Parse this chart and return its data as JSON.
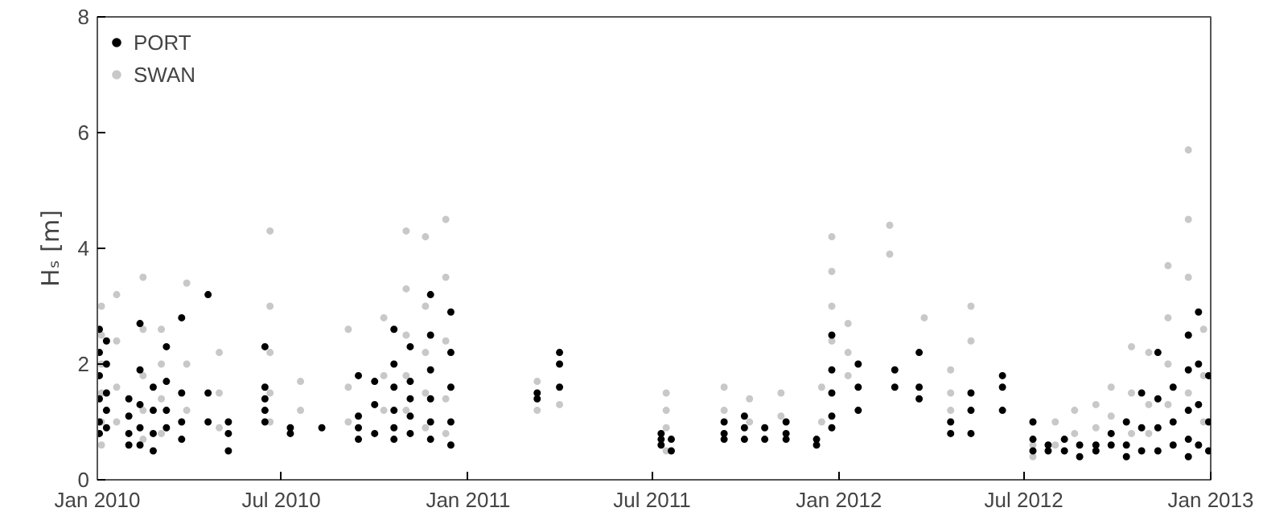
{
  "chart_data": {
    "type": "scatter",
    "ylabel": "Hₛ [m]",
    "marker": "circle",
    "grid": false,
    "legend": "top left",
    "xlim": [
      "2010-01",
      "2013-01"
    ],
    "ylim": [
      0,
      8
    ],
    "yticks": [
      0,
      2,
      4,
      6,
      8
    ],
    "xticks": [
      {
        "value": "2010-01",
        "label": "Jan 2010"
      },
      {
        "value": "2010-07",
        "label": "Jul 2010"
      },
      {
        "value": "2011-01",
        "label": "Jan 2011"
      },
      {
        "value": "2011-07",
        "label": "Jul 2011"
      },
      {
        "value": "2012-01",
        "label": "Jan 2012"
      },
      {
        "value": "2012-07",
        "label": "Jul 2012"
      },
      {
        "value": "2013-01",
        "label": "Jan 2013"
      }
    ],
    "series": [
      {
        "name": "PORT",
        "color": "#000000",
        "x": [
          "2010-01-03",
          "2010-01-03",
          "2010-01-03",
          "2010-01-03",
          "2010-01-03",
          "2010-01-03",
          "2010-01-10",
          "2010-01-10",
          "2010-01-10",
          "2010-01-10",
          "2010-01-10",
          "2010-02-01",
          "2010-02-01",
          "2010-02-01",
          "2010-02-01",
          "2010-02-12",
          "2010-02-12",
          "2010-02-12",
          "2010-02-12",
          "2010-02-12",
          "2010-02-25",
          "2010-02-25",
          "2010-02-25",
          "2010-02-25",
          "2010-03-10",
          "2010-03-10",
          "2010-03-10",
          "2010-03-10",
          "2010-03-25",
          "2010-03-25",
          "2010-03-25",
          "2010-03-25",
          "2010-04-20",
          "2010-04-20",
          "2010-04-20",
          "2010-05-10",
          "2010-05-10",
          "2010-05-10",
          "2010-06-15",
          "2010-06-15",
          "2010-06-15",
          "2010-06-15",
          "2010-06-15",
          "2010-07-10",
          "2010-07-10",
          "2010-08-10",
          "2010-09-15",
          "2010-09-15",
          "2010-09-15",
          "2010-09-15",
          "2010-10-01",
          "2010-10-01",
          "2010-10-01",
          "2010-10-20",
          "2010-10-20",
          "2010-10-20",
          "2010-10-20",
          "2010-10-20",
          "2010-10-20",
          "2010-11-05",
          "2010-11-05",
          "2010-11-05",
          "2010-11-05",
          "2010-11-05",
          "2010-11-25",
          "2010-11-25",
          "2010-11-25",
          "2010-11-25",
          "2010-11-25",
          "2010-11-25",
          "2010-12-15",
          "2010-12-15",
          "2010-12-15",
          "2010-12-15",
          "2010-12-15",
          "2011-03-10",
          "2011-03-10",
          "2011-04-01",
          "2011-04-01",
          "2011-04-01",
          "2011-07-10",
          "2011-07-10",
          "2011-07-10",
          "2011-07-20",
          "2011-07-20",
          "2011-09-10",
          "2011-09-10",
          "2011-09-10",
          "2011-09-30",
          "2011-09-30",
          "2011-09-30",
          "2011-10-20",
          "2011-10-20",
          "2011-11-10",
          "2011-11-10",
          "2011-11-10",
          "2011-12-10",
          "2011-12-10",
          "2011-12-25",
          "2011-12-25",
          "2011-12-25",
          "2011-12-25",
          "2011-12-25",
          "2012-01-20",
          "2012-01-20",
          "2012-01-20",
          "2012-02-25",
          "2012-02-25",
          "2012-03-20",
          "2012-03-20",
          "2012-03-20",
          "2012-04-20",
          "2012-04-20",
          "2012-05-10",
          "2012-05-10",
          "2012-05-10",
          "2012-06-10",
          "2012-06-10",
          "2012-06-10",
          "2012-07-10",
          "2012-07-10",
          "2012-07-10",
          "2012-07-25",
          "2012-07-25",
          "2012-08-10",
          "2012-08-10",
          "2012-08-25",
          "2012-08-25",
          "2012-09-10",
          "2012-09-10",
          "2012-09-25",
          "2012-09-25",
          "2012-10-10",
          "2012-10-10",
          "2012-10-10",
          "2012-10-25",
          "2012-10-25",
          "2012-10-25",
          "2012-11-10",
          "2012-11-10",
          "2012-11-10",
          "2012-11-10",
          "2012-11-25",
          "2012-11-25",
          "2012-11-25",
          "2012-12-10",
          "2012-12-10",
          "2012-12-10",
          "2012-12-10",
          "2012-12-10",
          "2012-12-20",
          "2012-12-20",
          "2012-12-20",
          "2012-12-20",
          "2012-12-30",
          "2012-12-30",
          "2012-12-30"
        ],
        "values": [
          2.6,
          2.2,
          1.8,
          1.4,
          1.0,
          0.8,
          2.4,
          2.0,
          1.5,
          1.2,
          0.9,
          1.4,
          1.1,
          0.8,
          0.6,
          2.7,
          1.9,
          1.3,
          0.9,
          0.6,
          1.6,
          1.2,
          0.8,
          0.5,
          2.3,
          1.7,
          1.2,
          0.9,
          2.8,
          1.5,
          1.0,
          0.7,
          3.2,
          1.5,
          1.0,
          1.0,
          0.8,
          0.5,
          2.3,
          1.6,
          1.4,
          1.2,
          1.0,
          0.9,
          0.8,
          0.9,
          1.8,
          1.1,
          0.9,
          0.7,
          1.7,
          1.3,
          0.8,
          2.6,
          2.0,
          1.6,
          1.2,
          0.9,
          0.7,
          2.3,
          1.7,
          1.4,
          1.1,
          0.8,
          3.2,
          2.5,
          1.9,
          1.4,
          1.0,
          0.7,
          2.9,
          2.2,
          1.6,
          1.0,
          0.6,
          1.5,
          1.4,
          2.2,
          2.0,
          1.6,
          0.8,
          0.7,
          0.6,
          0.7,
          0.5,
          1.0,
          0.8,
          0.7,
          1.1,
          0.9,
          0.7,
          0.9,
          0.7,
          1.0,
          0.8,
          0.7,
          0.7,
          0.6,
          2.5,
          1.9,
          1.5,
          1.1,
          0.9,
          2.0,
          1.6,
          1.2,
          1.9,
          1.6,
          2.2,
          1.6,
          1.4,
          1.0,
          0.8,
          1.5,
          1.2,
          0.8,
          1.8,
          1.6,
          1.2,
          1.0,
          0.7,
          0.5,
          0.6,
          0.5,
          0.7,
          0.5,
          0.6,
          0.4,
          0.6,
          0.5,
          0.8,
          0.6,
          1.0,
          0.6,
          0.4,
          1.5,
          0.9,
          0.5,
          2.2,
          1.4,
          0.9,
          0.5,
          1.6,
          1.0,
          0.6,
          2.5,
          1.9,
          1.2,
          0.7,
          0.4,
          2.9,
          2.0,
          1.3,
          0.6,
          1.8,
          1.0,
          0.5
        ]
      },
      {
        "name": "SWAN",
        "color": "#c8c8c8",
        "x": [
          "2010-01-05",
          "2010-01-05",
          "2010-01-05",
          "2010-01-05",
          "2010-01-05",
          "2010-01-05",
          "2010-01-20",
          "2010-01-20",
          "2010-01-20",
          "2010-01-20",
          "2010-02-15",
          "2010-02-15",
          "2010-02-15",
          "2010-02-15",
          "2010-02-15",
          "2010-03-05",
          "2010-03-05",
          "2010-03-05",
          "2010-03-05",
          "2010-03-30",
          "2010-03-30",
          "2010-03-30",
          "2010-05-01",
          "2010-05-01",
          "2010-05-01",
          "2010-06-20",
          "2010-06-20",
          "2010-06-20",
          "2010-06-20",
          "2010-06-20",
          "2010-07-20",
          "2010-07-20",
          "2010-09-05",
          "2010-09-05",
          "2010-09-05",
          "2010-10-10",
          "2010-10-10",
          "2010-10-10",
          "2010-11-01",
          "2010-11-01",
          "2010-11-01",
          "2010-11-01",
          "2010-11-01",
          "2010-11-20",
          "2010-11-20",
          "2010-11-20",
          "2010-11-20",
          "2010-11-20",
          "2010-12-10",
          "2010-12-10",
          "2010-12-10",
          "2010-12-10",
          "2010-12-10",
          "2011-03-10",
          "2011-03-10",
          "2011-04-01",
          "2011-07-15",
          "2011-07-15",
          "2011-07-15",
          "2011-07-15",
          "2011-09-10",
          "2011-09-10",
          "2011-10-05",
          "2011-10-05",
          "2011-11-05",
          "2011-11-05",
          "2011-12-15",
          "2011-12-15",
          "2011-12-25",
          "2011-12-25",
          "2011-12-25",
          "2011-12-25",
          "2012-01-10",
          "2012-01-10",
          "2012-01-10",
          "2012-02-20",
          "2012-02-20",
          "2012-03-25",
          "2012-04-20",
          "2012-04-20",
          "2012-04-20",
          "2012-05-10",
          "2012-05-10",
          "2012-07-10",
          "2012-07-10",
          "2012-07-10",
          "2012-08-01",
          "2012-08-01",
          "2012-08-20",
          "2012-08-20",
          "2012-09-10",
          "2012-09-10",
          "2012-09-25",
          "2012-09-25",
          "2012-10-15",
          "2012-10-15",
          "2012-10-15",
          "2012-11-01",
          "2012-11-01",
          "2012-11-01",
          "2012-11-20",
          "2012-11-20",
          "2012-11-20",
          "2012-11-20",
          "2012-12-10",
          "2012-12-10",
          "2012-12-10",
          "2012-12-10",
          "2012-12-10",
          "2012-12-25",
          "2012-12-25",
          "2012-12-25"
        ],
        "values": [
          3.0,
          2.5,
          2.0,
          1.5,
          1.0,
          0.6,
          3.2,
          2.4,
          1.6,
          1.0,
          3.5,
          2.6,
          1.8,
          1.2,
          0.7,
          2.6,
          2.0,
          1.4,
          0.8,
          3.4,
          2.0,
          1.2,
          2.2,
          1.5,
          0.9,
          4.3,
          3.0,
          2.2,
          1.5,
          1.0,
          1.7,
          1.2,
          2.6,
          1.6,
          1.0,
          2.8,
          1.8,
          1.2,
          4.3,
          3.3,
          2.5,
          1.8,
          1.2,
          4.2,
          3.0,
          2.2,
          1.5,
          0.9,
          4.5,
          3.5,
          2.4,
          1.4,
          0.8,
          1.7,
          1.2,
          1.3,
          1.5,
          1.2,
          0.9,
          0.5,
          1.6,
          1.2,
          1.4,
          1.0,
          1.5,
          1.1,
          1.6,
          1.0,
          4.2,
          3.6,
          3.0,
          2.4,
          2.7,
          2.2,
          1.8,
          4.4,
          3.9,
          2.8,
          1.9,
          1.5,
          1.2,
          3.0,
          2.4,
          1.0,
          0.6,
          0.4,
          1.0,
          0.6,
          1.2,
          0.8,
          1.3,
          0.9,
          1.6,
          1.1,
          2.3,
          1.5,
          0.8,
          2.2,
          1.3,
          0.8,
          3.7,
          2.8,
          2.0,
          1.3,
          5.7,
          4.5,
          3.5,
          2.5,
          1.5,
          2.6,
          1.8,
          1.0
        ]
      }
    ]
  }
}
